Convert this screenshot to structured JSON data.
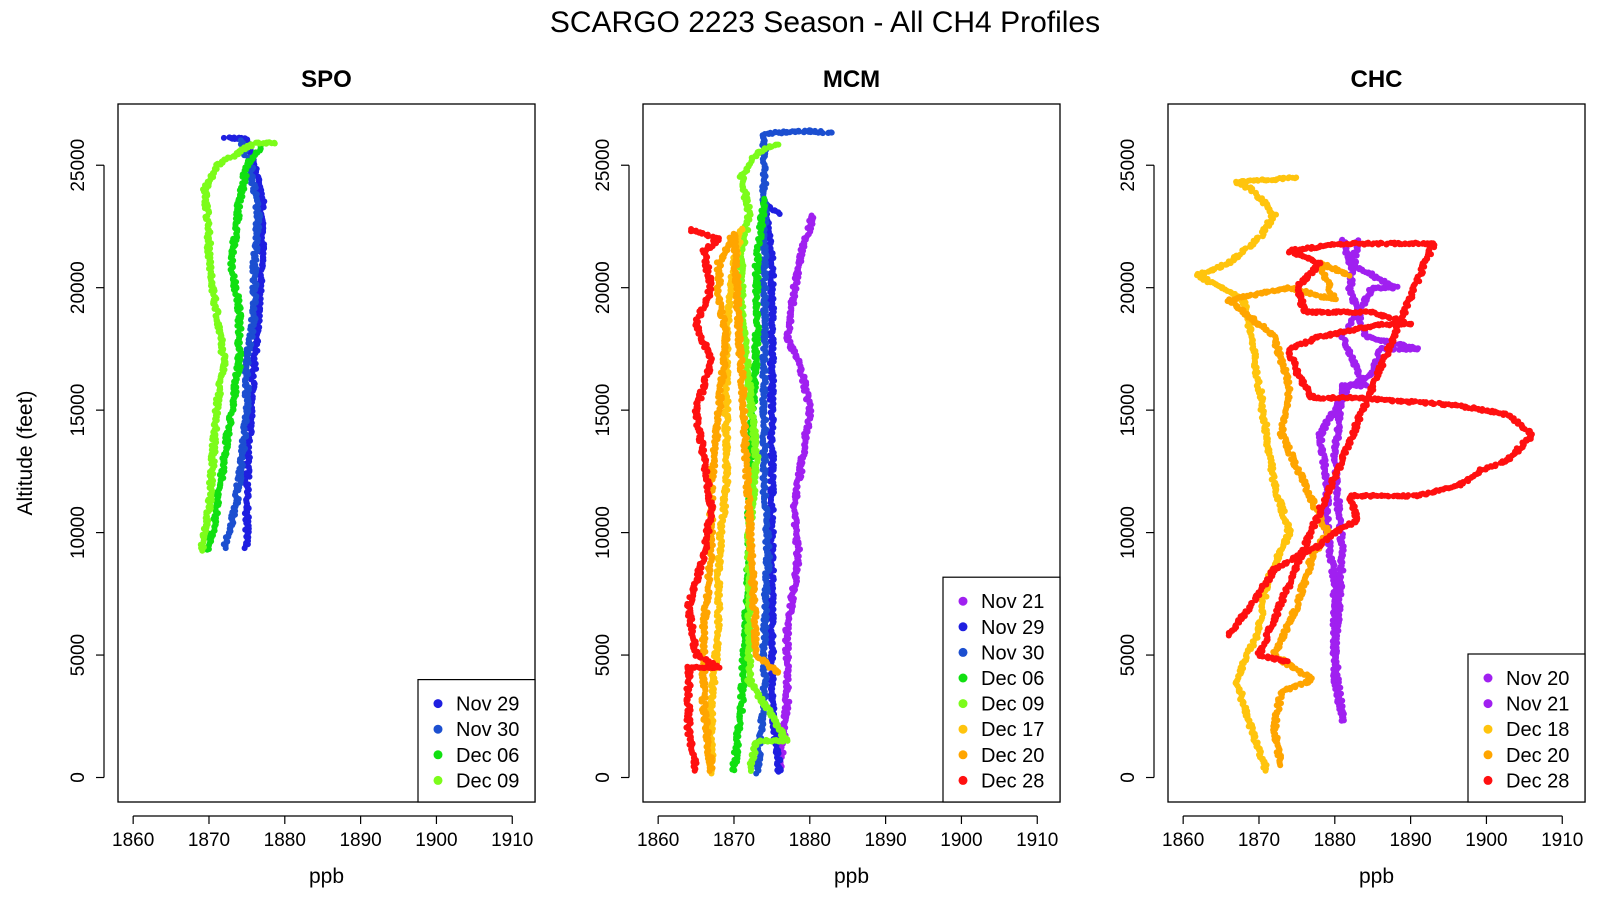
{
  "title": "SCARGO 2223 Season - All CH4 Profiles",
  "chart_data": [
    {
      "type": "scatter",
      "title": "SPO",
      "xlabel": "ppb",
      "ylabel": "Altitude (feet)",
      "xlim": [
        1858,
        1913
      ],
      "ylim": [
        -1000,
        27500
      ],
      "xticks": [
        1860,
        1870,
        1880,
        1890,
        1900,
        1910
      ],
      "yticks": [
        0,
        5000,
        10000,
        15000,
        20000,
        25000
      ],
      "legend_position": "bottom-right",
      "series": [
        {
          "name": "Nov 29",
          "color": "#1f1fe0",
          "profile": [
            [
              1875,
              9400
            ],
            [
              1875,
              12000
            ],
            [
              1875.5,
              15000
            ],
            [
              1876,
              17000
            ],
            [
              1876.5,
              19000
            ],
            [
              1877,
              21500
            ],
            [
              1877,
              23500
            ],
            [
              1876,
              25000
            ],
            [
              1875,
              26100
            ],
            [
              1872,
              26100
            ]
          ]
        },
        {
          "name": "Nov 30",
          "color": "#1c4fd0",
          "profile": [
            [
              1872,
              9400
            ],
            [
              1873.5,
              11000
            ],
            [
              1874.5,
              13500
            ],
            [
              1875,
              15000
            ],
            [
              1875,
              17000
            ],
            [
              1876,
              19000
            ],
            [
              1876,
              21000
            ],
            [
              1876.5,
              23000
            ],
            [
              1875.5,
              25000
            ],
            [
              1874,
              26100
            ]
          ]
        },
        {
          "name": "Dec 06",
          "color": "#11e011",
          "profile": [
            [
              1870,
              9300
            ],
            [
              1871,
              11000
            ],
            [
              1872,
              13000
            ],
            [
              1873,
              15000
            ],
            [
              1874,
              17000
            ],
            [
              1874,
              19000
            ],
            [
              1873,
              21000
            ],
            [
              1874,
              23500
            ],
            [
              1875,
              25000
            ],
            [
              1877,
              25800
            ]
          ]
        },
        {
          "name": "Dec 09",
          "color": "#7cfc1a",
          "profile": [
            [
              1869,
              9300
            ],
            [
              1870,
              11000
            ],
            [
              1870.5,
              13000
            ],
            [
              1871,
              15000
            ],
            [
              1872,
              17000
            ],
            [
              1871,
              19000
            ],
            [
              1870,
              21000
            ],
            [
              1870,
              22000
            ],
            [
              1869.5,
              24000
            ],
            [
              1871,
              25000
            ],
            [
              1876,
              25900
            ],
            [
              1879,
              25900
            ]
          ]
        }
      ]
    },
    {
      "type": "scatter",
      "title": "MCM",
      "xlabel": "ppb",
      "ylabel": "",
      "xlim": [
        1858,
        1913
      ],
      "ylim": [
        -1000,
        27500
      ],
      "xticks": [
        1860,
        1870,
        1880,
        1890,
        1900,
        1910
      ],
      "yticks": [
        0,
        5000,
        10000,
        15000,
        20000,
        25000
      ],
      "legend_position": "bottom-right",
      "series": [
        {
          "name": "Nov 21",
          "color": "#a020f0",
          "profile": [
            [
              1876,
              300
            ],
            [
              1877,
              3000
            ],
            [
              1877,
              6000
            ],
            [
              1878.5,
              9000
            ],
            [
              1878,
              11000
            ],
            [
              1879,
              13000
            ],
            [
              1880,
              15000
            ],
            [
              1879,
              16500
            ],
            [
              1877,
              18000
            ],
            [
              1878,
              20000
            ],
            [
              1879,
              21500
            ],
            [
              1880.5,
              23000
            ]
          ]
        },
        {
          "name": "Nov 29",
          "color": "#1f1fe0",
          "profile": [
            [
              1876,
              200
            ],
            [
              1875,
              3000
            ],
            [
              1875,
              6000
            ],
            [
              1875,
              9000
            ],
            [
              1875,
              12000
            ],
            [
              1875,
              15000
            ],
            [
              1875,
              18000
            ],
            [
              1875,
              21000
            ],
            [
              1874,
              23500
            ],
            [
              1876,
              23000
            ]
          ]
        },
        {
          "name": "Nov 30",
          "color": "#1c4fd0",
          "profile": [
            [
              1873,
              200
            ],
            [
              1874,
              3000
            ],
            [
              1874,
              6000
            ],
            [
              1874.5,
              9000
            ],
            [
              1874,
              12000
            ],
            [
              1874,
              15000
            ],
            [
              1874,
              18000
            ],
            [
              1874,
              21000
            ],
            [
              1874,
              24000
            ],
            [
              1874,
              26300
            ],
            [
              1880,
              26400
            ],
            [
              1883,
              26300
            ]
          ]
        },
        {
          "name": "Dec 06",
          "color": "#11e011",
          "profile": [
            [
              1870,
              300
            ],
            [
              1871,
              3000
            ],
            [
              1871.5,
              6000
            ],
            [
              1872,
              9000
            ],
            [
              1872,
              12000
            ],
            [
              1872.5,
              15000
            ],
            [
              1873,
              18000
            ],
            [
              1873,
              21000
            ],
            [
              1874,
              23700
            ]
          ]
        },
        {
          "name": "Dec 09",
          "color": "#7cfc1a",
          "profile": [
            [
              1872,
              300
            ],
            [
              1873,
              1500
            ],
            [
              1877,
              1500
            ],
            [
              1872,
              4000
            ],
            [
              1872,
              7000
            ],
            [
              1872,
              10000
            ],
            [
              1873,
              13000
            ],
            [
              1872,
              16000
            ],
            [
              1871,
              19000
            ],
            [
              1871,
              21500
            ],
            [
              1872,
              23000
            ],
            [
              1871,
              24500
            ],
            [
              1873,
              25500
            ],
            [
              1876,
              25900
            ]
          ]
        },
        {
          "name": "Dec 17",
          "color": "#ffc40d",
          "profile": [
            [
              1867,
              200
            ],
            [
              1867,
              3000
            ],
            [
              1868,
              6000
            ],
            [
              1868,
              9000
            ],
            [
              1869,
              12000
            ],
            [
              1869,
              15000
            ],
            [
              1869,
              18000
            ],
            [
              1870,
              21000
            ],
            [
              1871,
              22500
            ]
          ]
        },
        {
          "name": "Dec 20",
          "color": "#ffa500",
          "profile": [
            [
              1867,
              300
            ],
            [
              1866,
              3000
            ],
            [
              1866,
              6000
            ],
            [
              1867,
              9000
            ],
            [
              1867,
              12000
            ],
            [
              1868,
              15000
            ],
            [
              1869,
              18000
            ],
            [
              1868,
              19500
            ],
            [
              1868,
              21000
            ],
            [
              1870,
              22200
            ],
            [
              1873,
              5000
            ],
            [
              1876,
              4200
            ]
          ]
        },
        {
          "name": "Dec 28",
          "color": "#ff1010",
          "profile": [
            [
              1865,
              300
            ],
            [
              1864,
              2000
            ],
            [
              1864,
              4500
            ],
            [
              1868,
              4500
            ],
            [
              1865,
              5000
            ],
            [
              1864,
              7000
            ],
            [
              1866,
              9000
            ],
            [
              1867,
              11000
            ],
            [
              1866,
              13000
            ],
            [
              1865,
              15000
            ],
            [
              1867,
              17000
            ],
            [
              1865,
              18500
            ],
            [
              1867,
              20000
            ],
            [
              1866,
              21500
            ],
            [
              1868,
              22000
            ],
            [
              1864,
              22400
            ]
          ]
        }
      ]
    },
    {
      "type": "scatter",
      "title": "CHC",
      "xlabel": "ppb",
      "ylabel": "",
      "xlim": [
        1858,
        1913
      ],
      "ylim": [
        -1000,
        27500
      ],
      "xticks": [
        1860,
        1870,
        1880,
        1890,
        1900,
        1910
      ],
      "yticks": [
        0,
        5000,
        10000,
        15000,
        20000,
        25000
      ],
      "legend_position": "bottom-right",
      "series": [
        {
          "name": "Nov 20",
          "color": "#a020f0",
          "profile": [
            [
              1881,
              2500
            ],
            [
              1880,
              4000
            ],
            [
              1880,
              6000
            ],
            [
              1880,
              8000
            ],
            [
              1879,
              10000
            ],
            [
              1879,
              12000
            ],
            [
              1878,
              14000
            ],
            [
              1880,
              15000
            ],
            [
              1882,
              16000
            ],
            [
              1885,
              16500
            ],
            [
              1886,
              17500
            ],
            [
              1891,
              17500
            ],
            [
              1884,
              18000
            ],
            [
              1882,
              20000
            ],
            [
              1883,
              22000
            ]
          ]
        },
        {
          "name": "Nov 21",
          "color": "#a020f0",
          "profile": [
            [
              1881,
              2300
            ],
            [
              1880,
              5000
            ],
            [
              1881,
              9000
            ],
            [
              1880,
              13000
            ],
            [
              1881,
              16000
            ],
            [
              1884,
              16000
            ],
            [
              1881,
              18000
            ],
            [
              1883,
              19000
            ],
            [
              1885,
              20000
            ],
            [
              1888,
              20000
            ],
            [
              1882,
              21000
            ],
            [
              1881,
              22000
            ]
          ]
        },
        {
          "name": "Dec 18",
          "color": "#ffc40d",
          "profile": [
            [
              1871,
              300
            ],
            [
              1869,
              2000
            ],
            [
              1867,
              4000
            ],
            [
              1870,
              6000
            ],
            [
              1871,
              8000
            ],
            [
              1874,
              10000
            ],
            [
              1872,
              12000
            ],
            [
              1871,
              14000
            ],
            [
              1870,
              16000
            ],
            [
              1869,
              18000
            ],
            [
              1868,
              19500
            ],
            [
              1862,
              20500
            ],
            [
              1866,
              21000
            ],
            [
              1870,
              22000
            ],
            [
              1872,
              23000
            ],
            [
              1869,
              24000
            ],
            [
              1867,
              24300
            ],
            [
              1875,
              24500
            ]
          ]
        },
        {
          "name": "Dec 20",
          "color": "#ffa500",
          "profile": [
            [
              1873,
              500
            ],
            [
              1872,
              2000
            ],
            [
              1873,
              3500
            ],
            [
              1877,
              4000
            ],
            [
              1872,
              5000
            ],
            [
              1875,
              7000
            ],
            [
              1877,
              9000
            ],
            [
              1879,
              10000
            ],
            [
              1876,
              12000
            ],
            [
              1873,
              14000
            ],
            [
              1874,
              16000
            ],
            [
              1872,
              18000
            ],
            [
              1866,
              19500
            ],
            [
              1874,
              20000
            ],
            [
              1880,
              19500
            ],
            [
              1878,
              21000
            ],
            [
              1882,
              20500
            ]
          ]
        },
        {
          "name": "Dec 28",
          "color": "#ff1010",
          "profile": [
            [
              1866,
              5800
            ],
            [
              1869,
              7000
            ],
            [
              1872,
              8500
            ],
            [
              1878,
              9500
            ],
            [
              1880,
              10000
            ],
            [
              1883,
              10500
            ],
            [
              1882,
              11500
            ],
            [
              1891,
              11500
            ],
            [
              1897,
              12000
            ],
            [
              1899,
              12500
            ],
            [
              1903,
              13000
            ],
            [
              1906,
              14000
            ],
            [
              1903,
              14800
            ],
            [
              1896,
              15200
            ],
            [
              1883,
              15500
            ],
            [
              1877,
              15500
            ],
            [
              1875,
              16500
            ],
            [
              1874,
              17500
            ],
            [
              1878,
              18000
            ],
            [
              1886,
              18500
            ],
            [
              1890,
              18500
            ],
            [
              1885,
              19000
            ],
            [
              1876,
              19000
            ],
            [
              1875,
              20000
            ],
            [
              1878,
              21000
            ],
            [
              1874,
              21500
            ],
            [
              1881,
              21800
            ],
            [
              1893,
              21800
            ],
            [
              1870,
              5000
            ],
            [
              1874,
              4700
            ]
          ]
        }
      ]
    }
  ]
}
